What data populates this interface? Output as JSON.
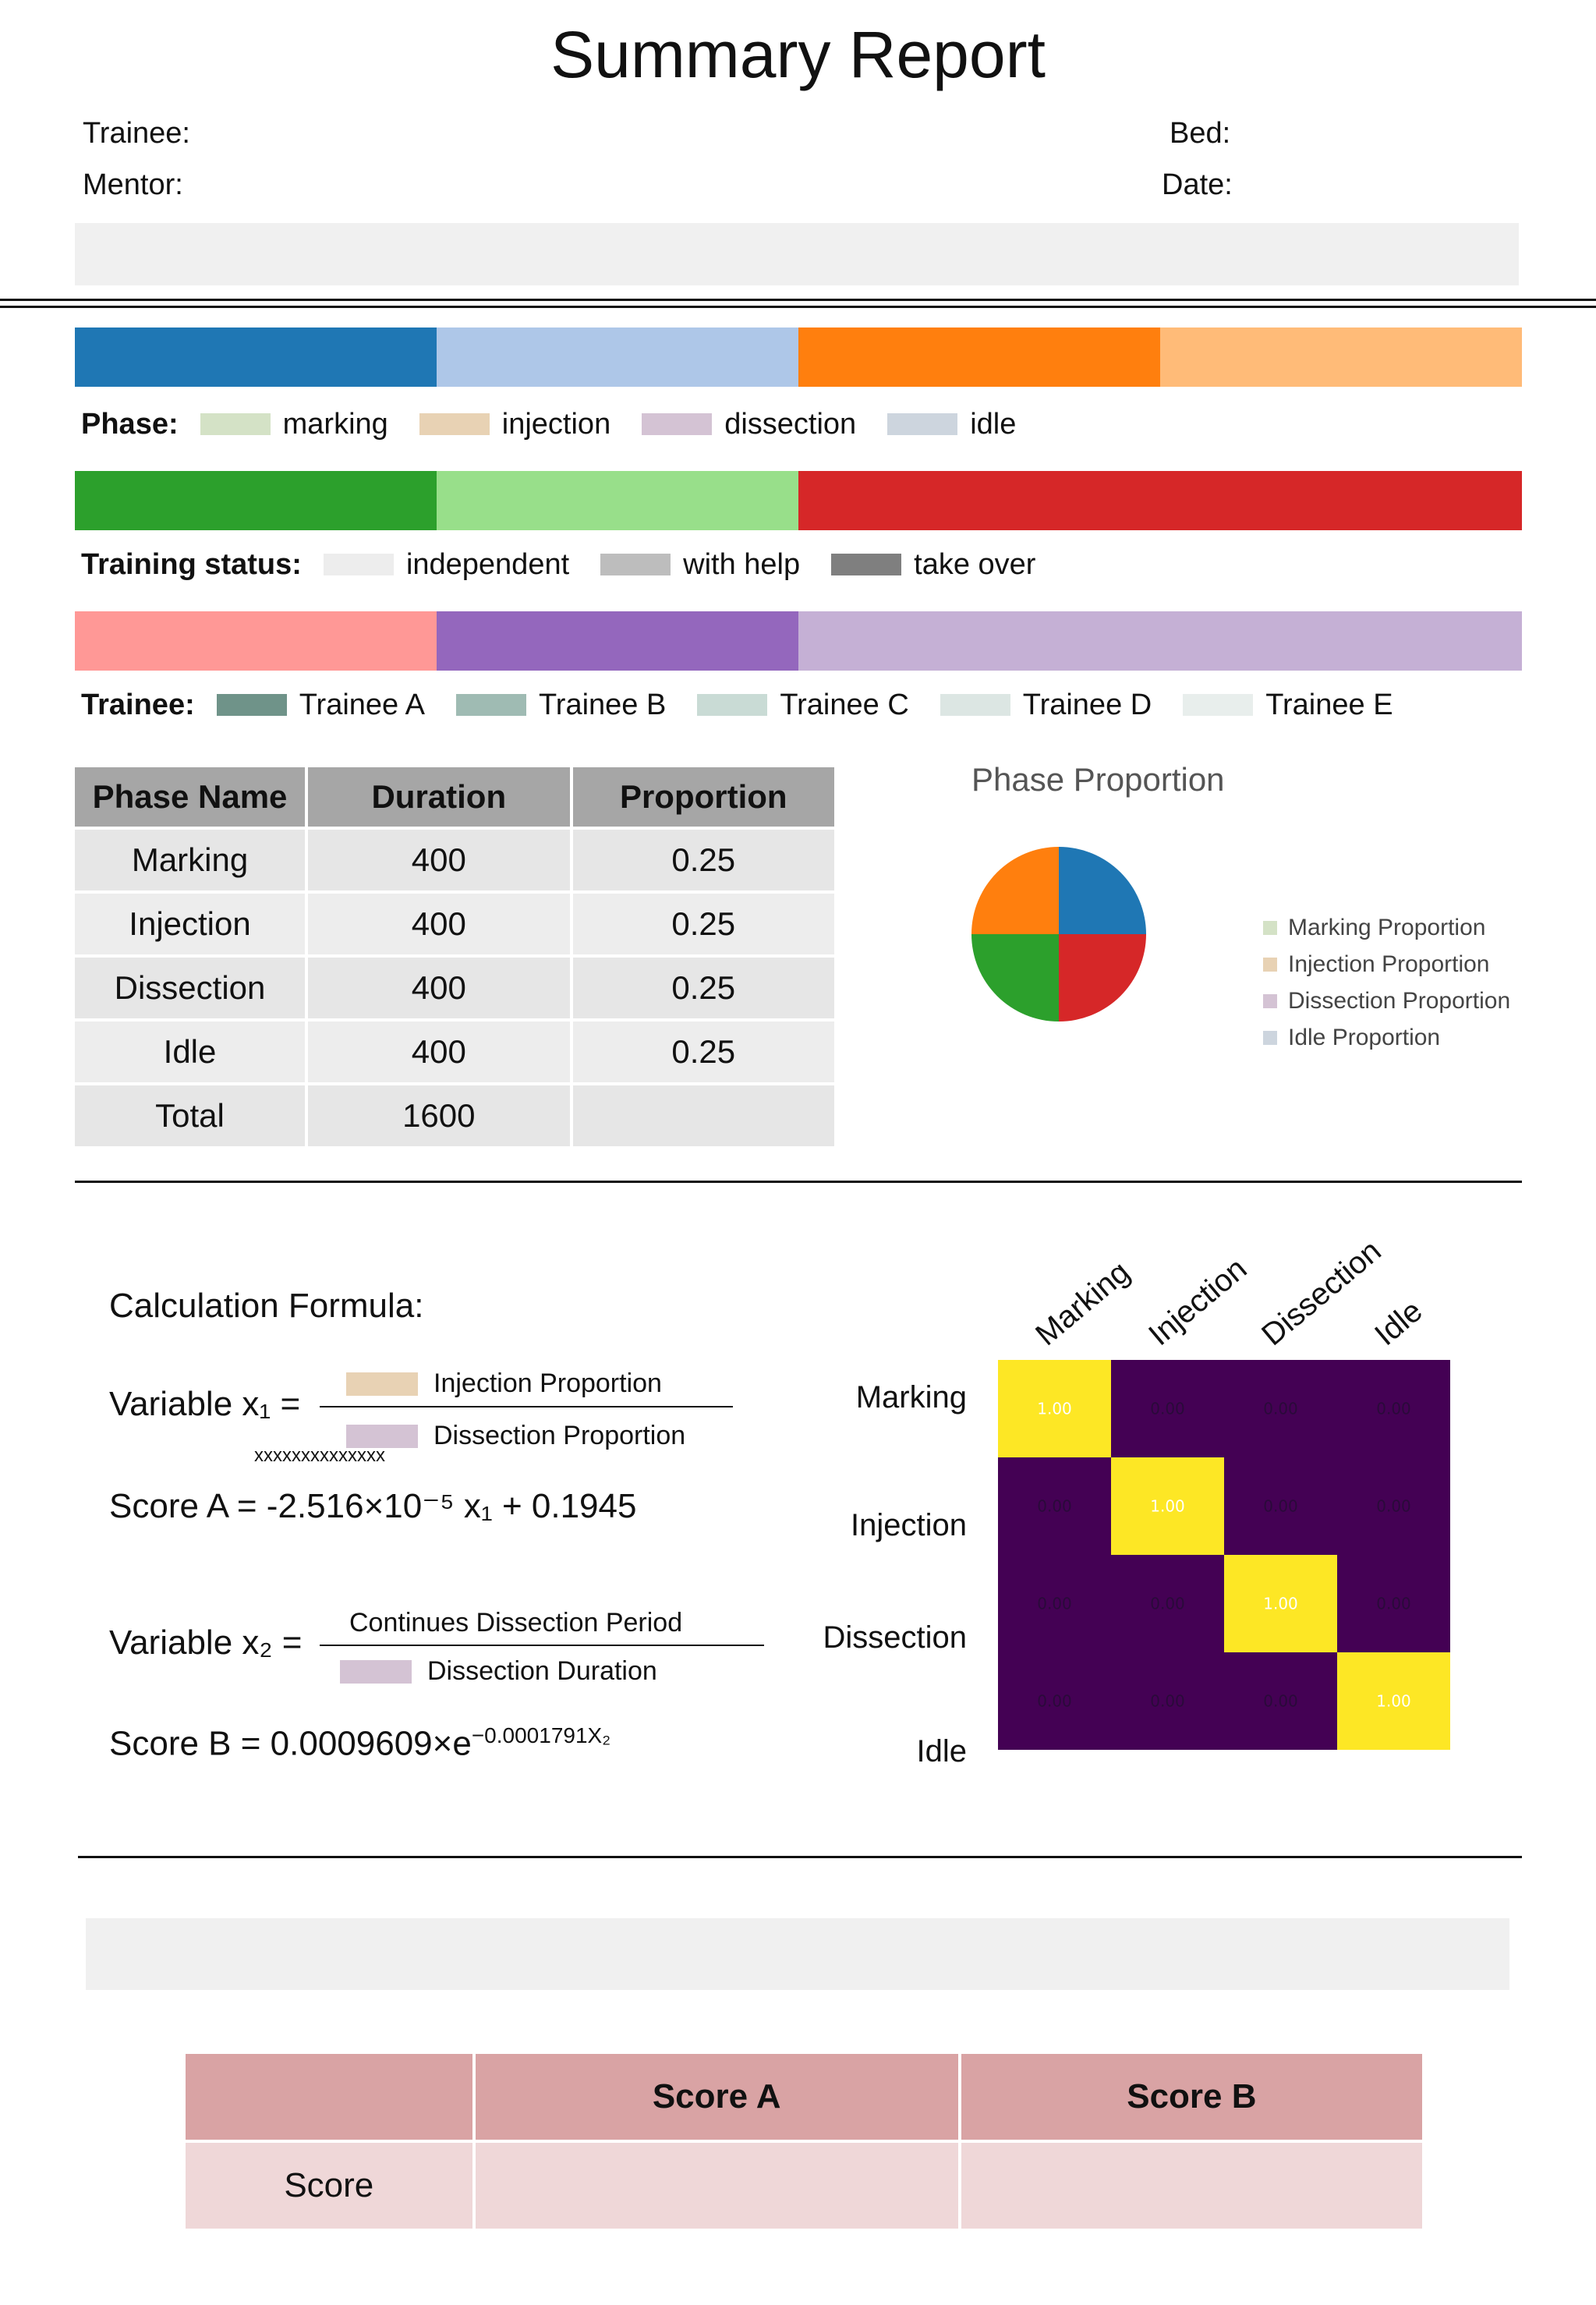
{
  "report": {
    "title": "Summary Report",
    "trainee_label": "Trainee:",
    "mentor_label": "Mentor:",
    "bed_label": "Bed:",
    "date_label": "Date:"
  },
  "bars": {
    "phase_bar_colors": [
      "#1f77b4",
      "#aec7e8",
      "#ff7f0e",
      "#ffbb78"
    ],
    "status_bar_colors": [
      "#2ca02c",
      "#98df8a",
      "#d62728",
      "#d62728"
    ],
    "trainee_bar_colors": [
      "#ff9896",
      "#9467bd",
      "#c5b0d5",
      "#c5b0d5"
    ]
  },
  "legends": {
    "phase": {
      "label": "Phase",
      "items": [
        {
          "text": "marking",
          "color": "#d4e2c6"
        },
        {
          "text": "injection",
          "color": "#e8d2b4"
        },
        {
          "text": "dissection",
          "color": "#d4c3d4"
        },
        {
          "text": "idle",
          "color": "#cdd5de"
        }
      ]
    },
    "status": {
      "label": "Training status",
      "items": [
        {
          "text": "independent",
          "color": "#ededed"
        },
        {
          "text": "with help",
          "color": "#bdbdbd"
        },
        {
          "text": "take over",
          "color": "#7f7f7f"
        }
      ]
    },
    "trainee": {
      "label": "Trainee",
      "items": [
        {
          "text": "Trainee A",
          "color": "#6f9389"
        },
        {
          "text": "Trainee B",
          "color": "#9fbbb3"
        },
        {
          "text": "Trainee C",
          "color": "#c9dbd5"
        },
        {
          "text": "Trainee D",
          "color": "#dce6e3"
        },
        {
          "text": "Trainee E",
          "color": "#e8eeec"
        }
      ]
    }
  },
  "phase_table": {
    "headers": [
      "Phase Name",
      "Duration",
      "Proportion"
    ],
    "rows": [
      {
        "name": "Marking",
        "duration": "400",
        "proportion": "0.25"
      },
      {
        "name": "Injection",
        "duration": "400",
        "proportion": "0.25"
      },
      {
        "name": "Dissection",
        "duration": "400",
        "proportion": "0.25"
      },
      {
        "name": "Idle",
        "duration": "400",
        "proportion": "0.25"
      }
    ],
    "total": {
      "name": "Total",
      "duration": "1600",
      "proportion": ""
    }
  },
  "pie": {
    "title": "Phase Proportion",
    "slices": [
      {
        "value": 0.25,
        "color": "#1f77b4"
      },
      {
        "value": 0.25,
        "color": "#d62728"
      },
      {
        "value": 0.25,
        "color": "#2ca02c"
      },
      {
        "value": 0.25,
        "color": "#ff7f0e"
      }
    ],
    "legend": [
      {
        "text": "Marking Proportion",
        "color": "#d4e2c6"
      },
      {
        "text": "Injection Proportion",
        "color": "#e8d2b4"
      },
      {
        "text": "Dissection Proportion",
        "color": "#d4c3d4"
      },
      {
        "text": "Idle Proportion",
        "color": "#cdd5de"
      }
    ]
  },
  "formula": {
    "heading": "Calculation Formula:",
    "var1_lhs": "Variable x₁ =",
    "var1_num": "Injection Proportion",
    "var1_num_color": "#e8d2b4",
    "var1_den": "Dissection Proportion",
    "var1_den_color": "#d4c3d4",
    "var1_note": "xxxxxxxxxxxxxx",
    "scoreA": "Score A = -2.516×10⁻⁵ x₁ + 0.1945",
    "var2_lhs": "Variable x₂ =",
    "var2_num": "Continues Dissection Period",
    "var2_den": "Dissection Duration",
    "var2_den_color": "#d4c3d4",
    "scoreB_prefix": "Score B = 0.0009609×e",
    "scoreB_exp": "−0.0001791X₂"
  },
  "heatmap": {
    "labels": [
      "Marking",
      "Injection",
      "Dissection",
      "Idle"
    ],
    "values": [
      [
        1.0,
        0.0,
        0.0,
        0.0
      ],
      [
        0.0,
        1.0,
        0.0,
        0.0
      ],
      [
        0.0,
        0.0,
        1.0,
        0.0
      ],
      [
        0.0,
        0.0,
        0.0,
        1.0
      ]
    ],
    "low_color": "#440154",
    "high_color": "#fde725"
  },
  "score_table": {
    "headers": [
      "",
      "Score A",
      "Score B"
    ],
    "row": [
      "Score",
      "",
      ""
    ]
  }
}
